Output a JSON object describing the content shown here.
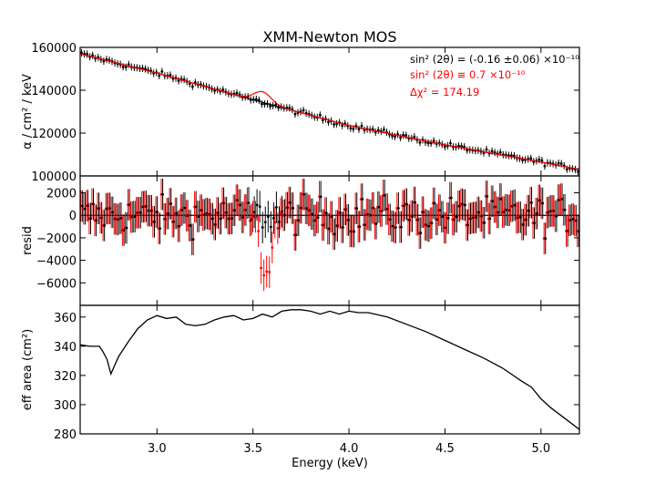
{
  "chart_data": {
    "type": "line",
    "title": "XMM-Newton MOS",
    "xlabel": "Energy (keV)",
    "xlim": [
      2.6,
      5.2
    ],
    "x_ticks": [
      3.0,
      3.5,
      4.0,
      4.5,
      5.0
    ],
    "x_tick_labels": [
      "3.0",
      "3.5",
      "4.0",
      "4.5",
      "5.0"
    ],
    "panels": [
      {
        "name": "spectrum",
        "ylabel": "α / cm² / keV",
        "ylim": [
          100000,
          160000
        ],
        "y_ticks": [
          100000,
          120000,
          140000,
          160000
        ],
        "y_tick_labels": [
          "100000",
          "120000",
          "140000",
          "160000"
        ],
        "model_line": {
          "color": "#ff0000",
          "line_energy_keV": 3.55,
          "line_amplitude": 5000,
          "line_sigma_keV": 0.045,
          "continuum": {
            "x": [
              2.6,
              3.0,
              3.5,
              4.0,
              4.5,
              5.0,
              5.2
            ],
            "y": [
              157000,
              148000,
              135500,
              123500,
              114500,
              106500,
              103000
            ]
          }
        },
        "data_color": "#000000",
        "annotations": [
          {
            "text": "sin² (2θ) = (-0.16 ±0.06) ×10⁻¹⁰",
            "color": "#000000"
          },
          {
            "text": "sin² (2θ) ≡ 0.7 ×10⁻¹⁰",
            "color": "#ff0000"
          },
          {
            "text": "Δχ²  = 174.19",
            "color": "#ff0000"
          }
        ]
      },
      {
        "name": "residuals",
        "ylabel": "resid",
        "ylim": [
          -8000,
          3500
        ],
        "y_ticks": [
          -6000,
          -4000,
          -2000,
          0,
          2000
        ],
        "y_tick_labels": [
          "−6000",
          "−4000",
          "−2000",
          "0",
          "2000"
        ],
        "zero_line": 0,
        "dip_energy_keV": 3.57,
        "dip_depth": -5500,
        "series": [
          {
            "name": "null-model residuals",
            "color": "#000000"
          },
          {
            "name": "line-model residuals",
            "color": "#ff0000"
          }
        ]
      },
      {
        "name": "effective area",
        "ylabel": "eff area (cm²)",
        "ylim": [
          280,
          368
        ],
        "y_ticks": [
          280,
          300,
          320,
          340,
          360
        ],
        "y_tick_labels": [
          "280",
          "300",
          "320",
          "340",
          "360"
        ],
        "series": [
          {
            "name": "eff area",
            "color": "#000000",
            "x": [
              2.6,
              2.65,
              2.7,
              2.72,
              2.74,
              2.76,
              2.78,
              2.8,
              2.85,
              2.9,
              2.95,
              3.0,
              3.05,
              3.1,
              3.15,
              3.2,
              3.25,
              3.3,
              3.35,
              3.4,
              3.45,
              3.5,
              3.55,
              3.6,
              3.65,
              3.7,
              3.75,
              3.8,
              3.85,
              3.9,
              3.95,
              4.0,
              4.05,
              4.1,
              4.2,
              4.3,
              4.4,
              4.5,
              4.6,
              4.7,
              4.8,
              4.9,
              4.95,
              5.0,
              5.05,
              5.1,
              5.15,
              5.2
            ],
            "y": [
              341,
              340,
              340,
              336,
              331,
              321,
              327,
              333,
              343,
              352,
              358,
              361,
              359,
              360,
              355,
              354,
              355,
              358,
              360,
              361,
              358,
              359,
              362,
              360,
              364,
              365,
              365,
              364,
              362,
              364,
              362,
              364,
              363,
              363,
              360,
              355,
              350,
              344,
              338,
              332,
              325,
              316,
              312,
              304,
              298,
              293,
              288,
              283
            ]
          }
        ]
      }
    ]
  }
}
